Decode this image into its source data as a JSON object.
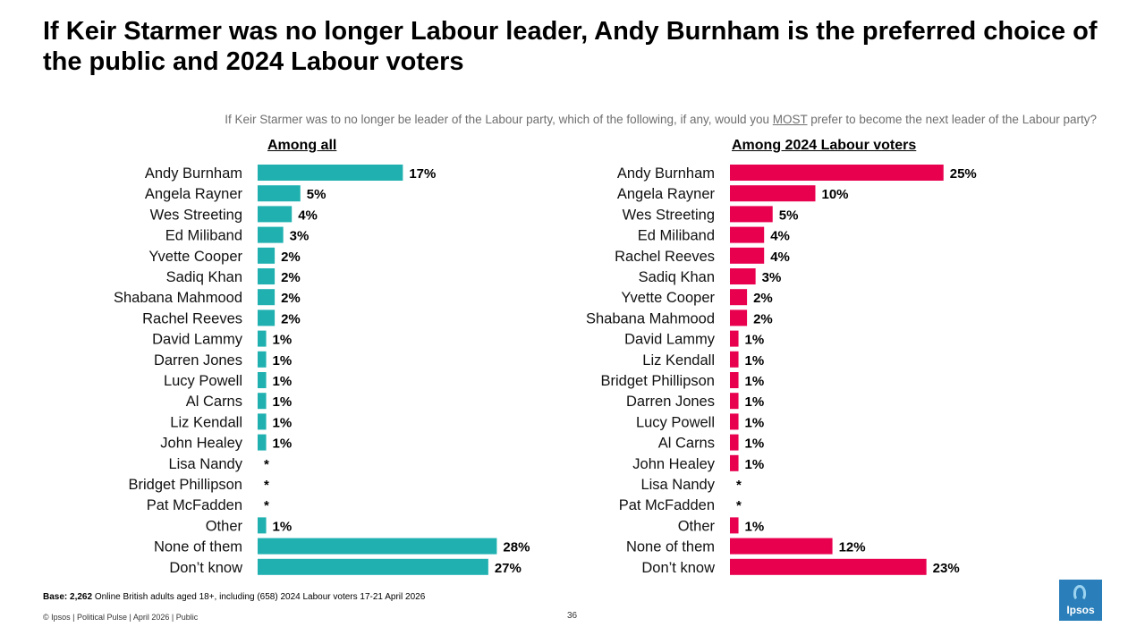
{
  "title": "If Keir Starmer was no longer Labour leader, Andy Burnham is the preferred choice of the public and 2024 Labour voters",
  "subtitle": {
    "before": "If Keir Starmer was to no longer be leader of the Labour party, which of the following, if any, would you ",
    "emphasis": "MOST",
    "after": " prefer to become the next leader of the Labour party?"
  },
  "colors": {
    "all": "#20b0b0",
    "labour": "#e8004f"
  },
  "chart_data": [
    {
      "type": "bar",
      "orientation": "horizontal",
      "title": "Among all",
      "categories": [
        "Andy Burnham",
        "Angela Rayner",
        "Wes Streeting",
        "Ed Miliband",
        "Yvette Cooper",
        "Sadiq Khan",
        "Shabana Mahmood",
        "Rachel Reeves",
        "David Lammy",
        "Darren Jones",
        "Lucy Powell",
        "Al Carns",
        "Liz Kendall",
        "John Healey",
        "Lisa Nandy",
        "Bridget Phillipson",
        "Pat McFadden",
        "Other",
        "None of them",
        "Don’t know"
      ],
      "values": [
        17,
        5,
        4,
        3,
        2,
        2,
        2,
        2,
        1,
        1,
        1,
        1,
        1,
        1,
        0,
        0,
        0,
        1,
        28,
        27
      ],
      "labels": [
        "17%",
        "5%",
        "4%",
        "3%",
        "2%",
        "2%",
        "2%",
        "2%",
        "1%",
        "1%",
        "1%",
        "1%",
        "1%",
        "1%",
        "*",
        "*",
        "*",
        "1%",
        "28%",
        "27%"
      ],
      "unit": "%"
    },
    {
      "type": "bar",
      "orientation": "horizontal",
      "title": "Among 2024 Labour voters",
      "categories": [
        "Andy Burnham",
        "Angela Rayner",
        "Wes Streeting",
        "Ed Miliband",
        "Rachel Reeves",
        "Sadiq Khan",
        "Yvette Cooper",
        "Shabana Mahmood",
        "David Lammy",
        "Liz Kendall",
        "Bridget Phillipson",
        "Darren Jones",
        "Lucy Powell",
        "Al Carns",
        "John Healey",
        "Lisa Nandy",
        "Pat McFadden",
        "Other",
        "None of them",
        "Don’t know"
      ],
      "values": [
        25,
        10,
        5,
        4,
        4,
        3,
        2,
        2,
        1,
        1,
        1,
        1,
        1,
        1,
        1,
        0,
        0,
        1,
        12,
        23
      ],
      "labels": [
        "25%",
        "10%",
        "5%",
        "4%",
        "4%",
        "3%",
        "2%",
        "2%",
        "1%",
        "1%",
        "1%",
        "1%",
        "1%",
        "1%",
        "1%",
        "*",
        "*",
        "1%",
        "12%",
        "23%"
      ],
      "unit": "%"
    }
  ],
  "footer": {
    "base_label": "Base:",
    "base_value": "2,262",
    "base_text": " Online British adults aged 18+, including (658) 2024 Labour voters 17-21 April 2026",
    "copyright": "© Ipsos | Political Pulse | April 2026 | Public",
    "page_number": "36"
  },
  "logo": {
    "text": "Ipsos"
  }
}
